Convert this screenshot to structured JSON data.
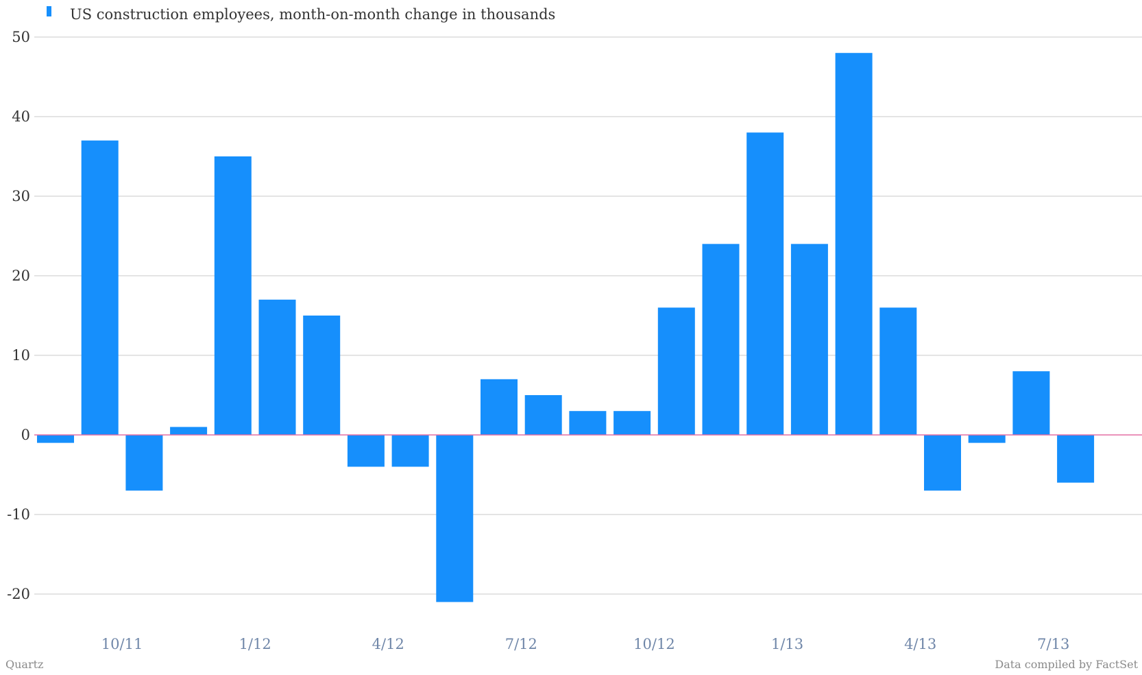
{
  "chart_data": {
    "type": "bar",
    "legend": {
      "position": "top-left",
      "color": "#168ffc"
    },
    "series": [
      {
        "name": "US construction employees, month-on-month change in thousands",
        "color": "#168ffc",
        "values": [
          -1,
          37,
          -7,
          1,
          35,
          17,
          15,
          -4,
          -4,
          -21,
          7,
          5,
          3,
          3,
          16,
          24,
          38,
          24,
          48,
          16,
          -7,
          -1,
          8,
          -6
        ]
      }
    ],
    "x_tick_labels": [
      {
        "label": "10/11",
        "index": 2
      },
      {
        "label": "1/12",
        "index": 5
      },
      {
        "label": "4/12",
        "index": 8
      },
      {
        "label": "7/12",
        "index": 11
      },
      {
        "label": "10/12",
        "index": 14
      },
      {
        "label": "1/13",
        "index": 17
      },
      {
        "label": "4/13",
        "index": 20
      },
      {
        "label": "7/13",
        "index": 23
      }
    ],
    "ylim": [
      -20,
      50
    ],
    "y_ticks": [
      50,
      40,
      30,
      20,
      10,
      0,
      -10,
      -20
    ],
    "grid": true,
    "zero_line_color": "#e36fa3"
  },
  "footer": {
    "source_left": "Quartz",
    "source_right": "Data compiled by FactSet"
  }
}
